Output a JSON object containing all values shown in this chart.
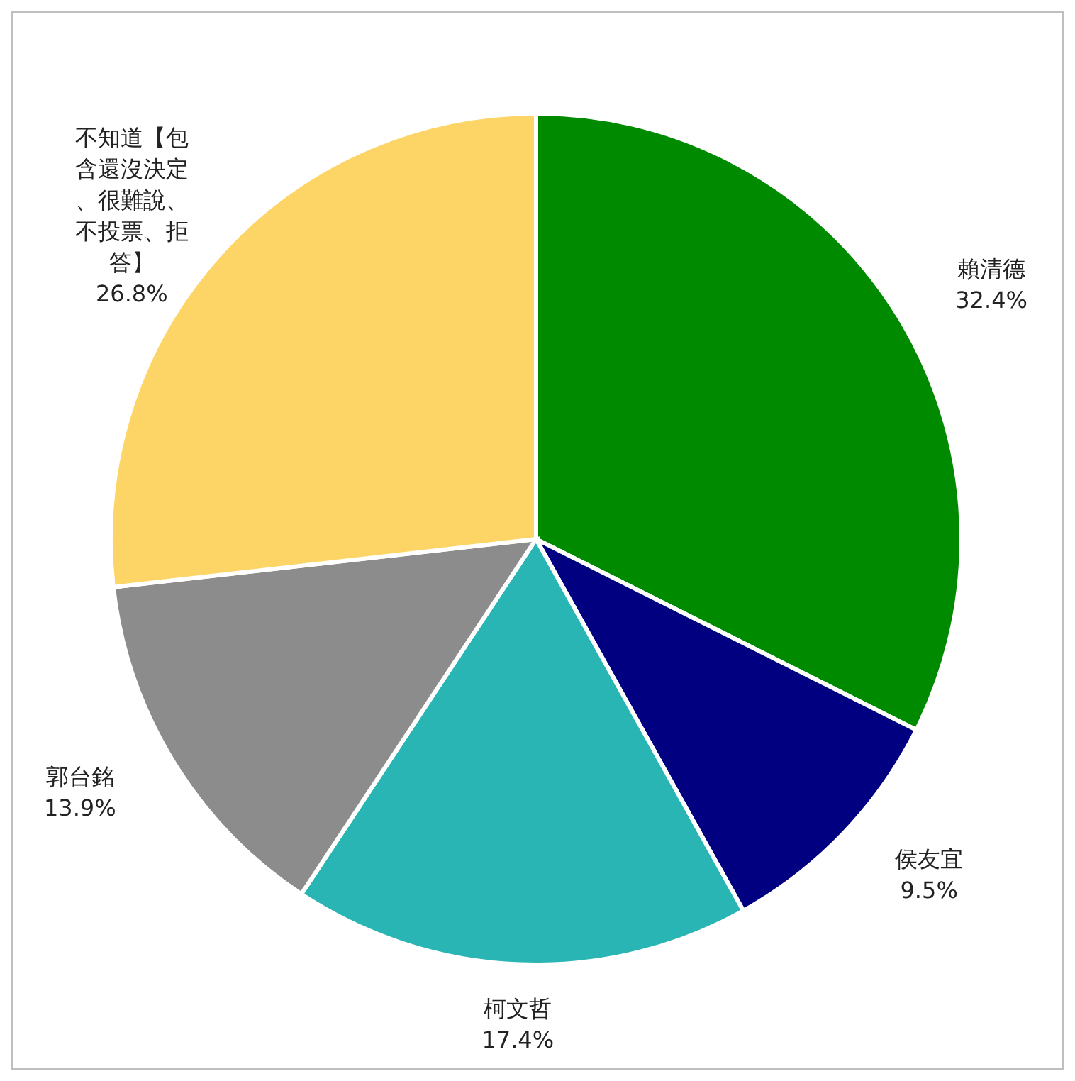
{
  "chart_data": {
    "type": "pie",
    "categories": [
      "賴清德",
      "侯友宜",
      "柯文哲",
      "郭台銘",
      "不知道【包含還沒決定、很難說、不投票、拒答】"
    ],
    "values": [
      32.4,
      9.5,
      17.4,
      13.9,
      26.8
    ],
    "colors": [
      "#008a00",
      "#000080",
      "#2ab5b5",
      "#8c8c8c",
      "#fdd567"
    ],
    "value_labels": [
      "32.4%",
      "9.5%",
      "17.4%",
      "13.9%",
      "26.8%"
    ]
  }
}
